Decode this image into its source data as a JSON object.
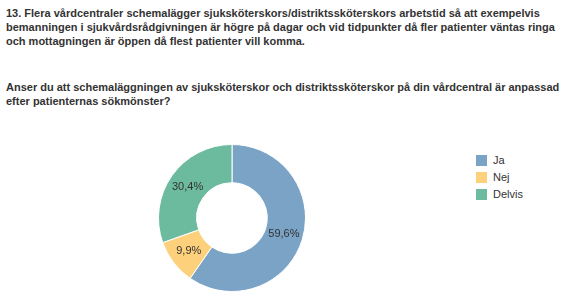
{
  "chart_data": {
    "type": "doughnut",
    "title": "13. Flera vårdcentraler schemalägger sjuksköterskors/distriktssköterskors arbetstid så att exempelvis bemanningen i sjukvårdsrådgivningen är högre på dagar och vid tidpunkter då fler patienter väntas ringa och mottagningen är öppen då flest patienter vill komma.",
    "subtitle": "Anser du att schemaläggningen av sjuksköterskor och distriktssköterskor på din vårdcentral är anpassad efter patienternas sökmönster?",
    "categories": [
      "Ja",
      "Nej",
      "Delvis"
    ],
    "values": [
      59.6,
      9.9,
      30.4
    ],
    "value_labels": [
      "59,6%",
      "9,9%",
      "30,4%"
    ],
    "colors": [
      "#7aa3c5",
      "#fdd07c",
      "#6dbb9e"
    ],
    "data_labels": true,
    "legend": "right"
  }
}
